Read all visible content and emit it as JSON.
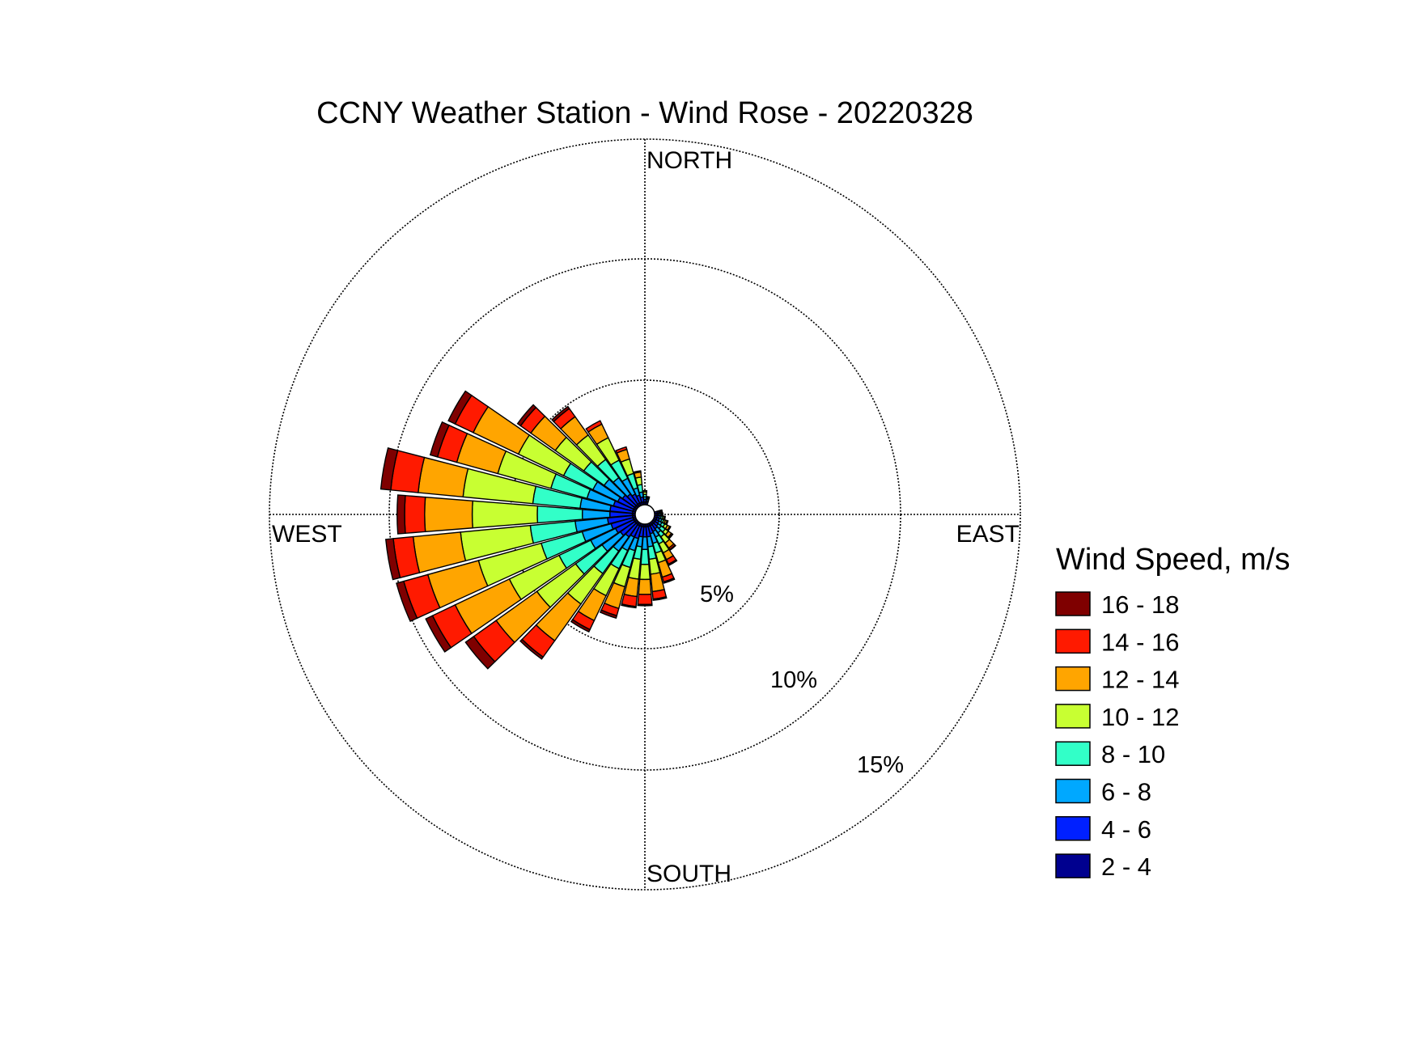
{
  "chart_data": {
    "type": "wind-rose",
    "title": "CCNY Weather Station - Wind Rose - 20220328",
    "directions": [
      "NORTH",
      "EAST",
      "SOUTH",
      "WEST"
    ],
    "radial_ticks": [
      {
        "value": 5,
        "label": "5%"
      },
      {
        "value": 10,
        "label": "10%"
      },
      {
        "value": 15,
        "label": "15%"
      }
    ],
    "rmax": 15,
    "grid": true,
    "legend_position": "right",
    "legend_title": "Wind Speed, m/s",
    "speed_bins": [
      {
        "label": "16 - 18",
        "color": "#7f0000"
      },
      {
        "label": "14 - 16",
        "color": "#ff1a00"
      },
      {
        "label": "12 - 14",
        "color": "#ffa500"
      },
      {
        "label": "10 - 12",
        "color": "#c8ff32"
      },
      {
        "label": "8 - 10",
        "color": "#32ffc8"
      },
      {
        "label": "6 - 8",
        "color": "#00a8ff"
      },
      {
        "label": "4 - 6",
        "color": "#0020ff"
      },
      {
        "label": "2 - 4",
        "color": "#00008f"
      }
    ],
    "sectors": [
      {
        "direction_deg": 80,
        "cumulative_pct": [
          0.5,
          0.56,
          0.6,
          0.64,
          0.68,
          0.7,
          0.7,
          0.7
        ]
      },
      {
        "direction_deg": 90,
        "cumulative_pct": [
          0.5,
          0.56,
          0.62,
          0.66,
          0.7,
          0.72,
          0.72,
          0.72
        ]
      },
      {
        "direction_deg": 100,
        "cumulative_pct": [
          0.5,
          0.58,
          0.65,
          0.72,
          0.78,
          0.82,
          0.82,
          0.82
        ]
      },
      {
        "direction_deg": 110,
        "cumulative_pct": [
          0.5,
          0.6,
          0.7,
          0.78,
          0.85,
          0.92,
          0.96,
          0.96
        ]
      },
      {
        "direction_deg": 120,
        "cumulative_pct": [
          0.5,
          0.62,
          0.75,
          0.88,
          1.0,
          1.1,
          1.14,
          1.14
        ]
      },
      {
        "direction_deg": 130,
        "cumulative_pct": [
          0.5,
          0.65,
          0.8,
          1.0,
          1.15,
          1.3,
          1.35,
          1.37
        ]
      },
      {
        "direction_deg": 140,
        "cumulative_pct": [
          0.5,
          0.7,
          0.9,
          1.1,
          1.4,
          1.65,
          1.72,
          1.75
        ]
      },
      {
        "direction_deg": 150,
        "cumulative_pct": [
          0.5,
          0.75,
          1.0,
          1.3,
          1.7,
          2.0,
          2.2,
          2.25
        ]
      },
      {
        "direction_deg": 160,
        "cumulative_pct": [
          0.5,
          0.8,
          1.2,
          1.6,
          2.0,
          2.6,
          2.8,
          2.85
        ]
      },
      {
        "direction_deg": 170,
        "cumulative_pct": [
          0.5,
          0.9,
          1.3,
          1.8,
          2.4,
          3.1,
          3.4,
          3.45
        ]
      },
      {
        "direction_deg": 180,
        "cumulative_pct": [
          0.5,
          0.9,
          1.4,
          2.0,
          2.6,
          3.2,
          3.6,
          3.65
        ]
      },
      {
        "direction_deg": 190,
        "cumulative_pct": [
          0.5,
          0.9,
          1.3,
          1.8,
          2.6,
          3.3,
          3.7,
          3.75
        ]
      },
      {
        "direction_deg": 200,
        "cumulative_pct": [
          0.5,
          1.0,
          1.5,
          2.2,
          3.0,
          3.9,
          4.2,
          4.3
        ]
      },
      {
        "direction_deg": 210,
        "cumulative_pct": [
          0.5,
          1.0,
          1.6,
          2.4,
          3.6,
          4.7,
          5.1,
          5.2
        ]
      },
      {
        "direction_deg": 220,
        "cumulative_pct": [
          0.5,
          1.1,
          1.8,
          2.9,
          4.4,
          6.2,
          7.0,
          7.1
        ]
      },
      {
        "direction_deg": 230,
        "cumulative_pct": [
          0.5,
          1.2,
          2.1,
          3.4,
          5.3,
          7.3,
          8.4,
          8.8
        ]
      },
      {
        "direction_deg": 240,
        "cumulative_pct": [
          0.5,
          1.3,
          2.4,
          3.8,
          6.0,
          8.4,
          9.4,
          9.7
        ]
      },
      {
        "direction_deg": 250,
        "cumulative_pct": [
          0.5,
          1.4,
          2.6,
          4.3,
          6.9,
          9.0,
          10.0,
          10.3
        ]
      },
      {
        "direction_deg": 260,
        "cumulative_pct": [
          0.5,
          1.5,
          2.8,
          4.6,
          7.4,
          9.3,
          10.1,
          10.4
        ]
      },
      {
        "direction_deg": 270,
        "cumulative_pct": [
          0.5,
          1.4,
          2.5,
          4.3,
          6.9,
          8.8,
          9.6,
          9.9
        ]
      },
      {
        "direction_deg": 280,
        "cumulative_pct": [
          0.5,
          1.4,
          2.6,
          4.5,
          7.3,
          9.1,
          10.2,
          10.6
        ]
      },
      {
        "direction_deg": 290,
        "cumulative_pct": [
          0.5,
          1.3,
          2.4,
          3.9,
          6.1,
          7.8,
          8.6,
          8.9
        ]
      },
      {
        "direction_deg": 300,
        "cumulative_pct": [
          0.5,
          1.2,
          2.3,
          3.6,
          5.6,
          7.6,
          8.4,
          8.7
        ]
      },
      {
        "direction_deg": 310,
        "cumulative_pct": [
          0.5,
          1.1,
          2.0,
          3.0,
          4.4,
          5.6,
          6.1,
          6.25
        ]
      },
      {
        "direction_deg": 320,
        "cumulative_pct": [
          0.5,
          1.0,
          1.8,
          2.7,
          3.9,
          4.8,
          5.2,
          5.3
        ]
      },
      {
        "direction_deg": 330,
        "cumulative_pct": [
          0.5,
          0.9,
          1.6,
          2.4,
          3.4,
          4.0,
          4.15,
          4.15
        ]
      },
      {
        "direction_deg": 340,
        "cumulative_pct": [
          0.5,
          0.8,
          1.1,
          1.7,
          2.3,
          2.7,
          2.8,
          2.8
        ]
      },
      {
        "direction_deg": 350,
        "cumulative_pct": [
          0.5,
          0.7,
          0.9,
          1.2,
          1.5,
          1.7,
          1.75,
          1.75
        ]
      },
      {
        "direction_deg": 0,
        "cumulative_pct": [
          0.5,
          0.6,
          0.7,
          0.8,
          0.9,
          0.95,
          0.95,
          0.95
        ]
      },
      {
        "direction_deg": 10,
        "cumulative_pct": [
          0.5,
          0.56,
          0.62,
          0.66,
          0.7,
          0.72,
          0.72,
          0.72
        ]
      }
    ]
  }
}
